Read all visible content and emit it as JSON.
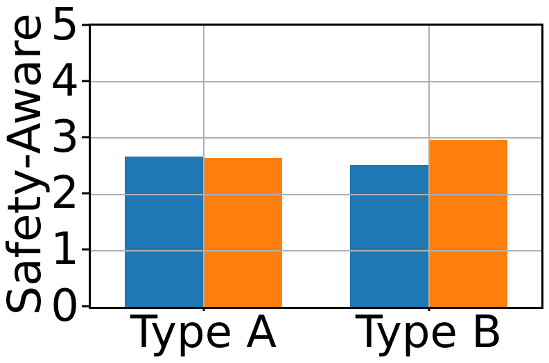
{
  "chart_data": {
    "type": "bar",
    "title": "",
    "ylabel": "Safety-Aware",
    "xlabel": "",
    "categories": [
      "Type A",
      "Type B"
    ],
    "series": [
      {
        "name": "blue-series",
        "color": "#1f77b4",
        "values": [
          2.67,
          2.52
        ]
      },
      {
        "name": "orange-series",
        "color": "#ff7f0e",
        "values": [
          2.65,
          2.97
        ]
      }
    ],
    "ylim": [
      0,
      5
    ],
    "yticks": [
      0,
      1,
      2,
      3,
      4,
      5
    ],
    "grid": true,
    "grid_color": "#b0b0b0",
    "legend_position": "none",
    "spine_color": "#000000",
    "background_color": "#ffffff"
  }
}
